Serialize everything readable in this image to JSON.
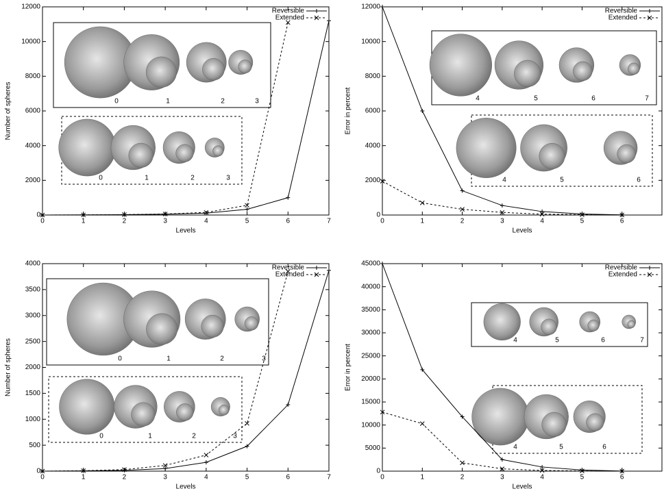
{
  "chart_data": [
    {
      "type": "line",
      "ylabel": "Number of spheres",
      "xlabel": "Levels",
      "legend": "upper right",
      "x": [
        0,
        1,
        2,
        3,
        4,
        5,
        6,
        7
      ],
      "xlim": [
        0,
        7
      ],
      "xticks": [
        0,
        1,
        2,
        3,
        4,
        5,
        6,
        7
      ],
      "ylim": [
        0,
        12000
      ],
      "yticks": [
        0,
        2000,
        4000,
        6000,
        8000,
        10000,
        12000
      ],
      "series": [
        {
          "name": "Reversible",
          "color": "#000000",
          "line_style": "solid",
          "marker": "plus",
          "values": [
            1,
            8,
            20,
            50,
            110,
            330,
            1000,
            11200
          ]
        },
        {
          "name": "Extended",
          "color": "#000000",
          "line_style": "dashed",
          "marker": "cross",
          "values": [
            1,
            8,
            25,
            60,
            150,
            560,
            11100,
            null
          ]
        }
      ],
      "insets": [
        {
          "style": "solid",
          "labels": [
            "0",
            "1",
            "2",
            "3"
          ]
        },
        {
          "style": "dashed",
          "labels": [
            "0",
            "1",
            "2",
            "3"
          ]
        }
      ]
    },
    {
      "type": "line",
      "ylabel": "Error in percent",
      "xlabel": "Levels",
      "legend": "upper right",
      "x": [
        0,
        1,
        2,
        3,
        4,
        5,
        6
      ],
      "xlim": [
        0,
        7
      ],
      "xticks": [
        0,
        1,
        2,
        3,
        4,
        5,
        6
      ],
      "ylim": [
        0,
        12000
      ],
      "yticks": [
        0,
        2000,
        4000,
        6000,
        8000,
        10000,
        12000
      ],
      "series": [
        {
          "name": "Reversible",
          "color": "#000000",
          "line_style": "solid",
          "marker": "plus",
          "values": [
            12000,
            6000,
            1400,
            550,
            200,
            60,
            10
          ]
        },
        {
          "name": "Extended",
          "color": "#000000",
          "line_style": "dashed",
          "marker": "cross",
          "values": [
            1950,
            700,
            330,
            150,
            50,
            20,
            5
          ]
        }
      ],
      "insets": [
        {
          "style": "solid",
          "labels": [
            "4",
            "5",
            "6",
            "7"
          ]
        },
        {
          "style": "dashed",
          "labels": [
            "4",
            "5",
            "6"
          ]
        }
      ]
    },
    {
      "type": "line",
      "ylabel": "Number of spheres",
      "xlabel": "Levels",
      "legend": "upper right",
      "x": [
        0,
        1,
        2,
        3,
        4,
        5,
        6,
        7
      ],
      "xlim": [
        0,
        7
      ],
      "xticks": [
        0,
        1,
        2,
        3,
        4,
        5,
        6,
        7
      ],
      "ylim": [
        0,
        4000
      ],
      "yticks": [
        0,
        500,
        1000,
        1500,
        2000,
        2500,
        3000,
        3500,
        4000
      ],
      "series": [
        {
          "name": "Reversible",
          "color": "#000000",
          "line_style": "solid",
          "marker": "plus",
          "values": [
            0,
            5,
            15,
            50,
            170,
            480,
            1280,
            3870
          ]
        },
        {
          "name": "Extended",
          "color": "#000000",
          "line_style": "dashed",
          "marker": "cross",
          "values": [
            0,
            8,
            30,
            110,
            310,
            920,
            3850,
            null
          ]
        }
      ],
      "insets": [
        {
          "style": "solid",
          "labels": [
            "0",
            "1",
            "2",
            "3"
          ]
        },
        {
          "style": "dashed",
          "labels": [
            "0",
            "1",
            "2",
            "3"
          ]
        }
      ]
    },
    {
      "type": "line",
      "ylabel": "Error in percent",
      "xlabel": "Levels",
      "legend": "upper right",
      "x": [
        0,
        1,
        2,
        3,
        4,
        5,
        6
      ],
      "xlim": [
        0,
        7
      ],
      "xticks": [
        0,
        1,
        2,
        3,
        4,
        5,
        6
      ],
      "ylim": [
        0,
        45000
      ],
      "yticks": [
        0,
        5000,
        10000,
        15000,
        20000,
        25000,
        30000,
        35000,
        40000,
        45000
      ],
      "series": [
        {
          "name": "Reversible",
          "color": "#000000",
          "line_style": "solid",
          "marker": "plus",
          "values": [
            45000,
            22000,
            11800,
            2500,
            900,
            250,
            20
          ]
        },
        {
          "name": "Extended",
          "color": "#000000",
          "line_style": "dashed",
          "marker": "cross",
          "values": [
            12800,
            10300,
            1800,
            500,
            150,
            50,
            5
          ]
        }
      ],
      "insets": [
        {
          "style": "solid",
          "labels": [
            "4",
            "5",
            "6",
            "7"
          ]
        },
        {
          "style": "dashed",
          "labels": [
            "4",
            "5",
            "6"
          ]
        }
      ]
    }
  ]
}
